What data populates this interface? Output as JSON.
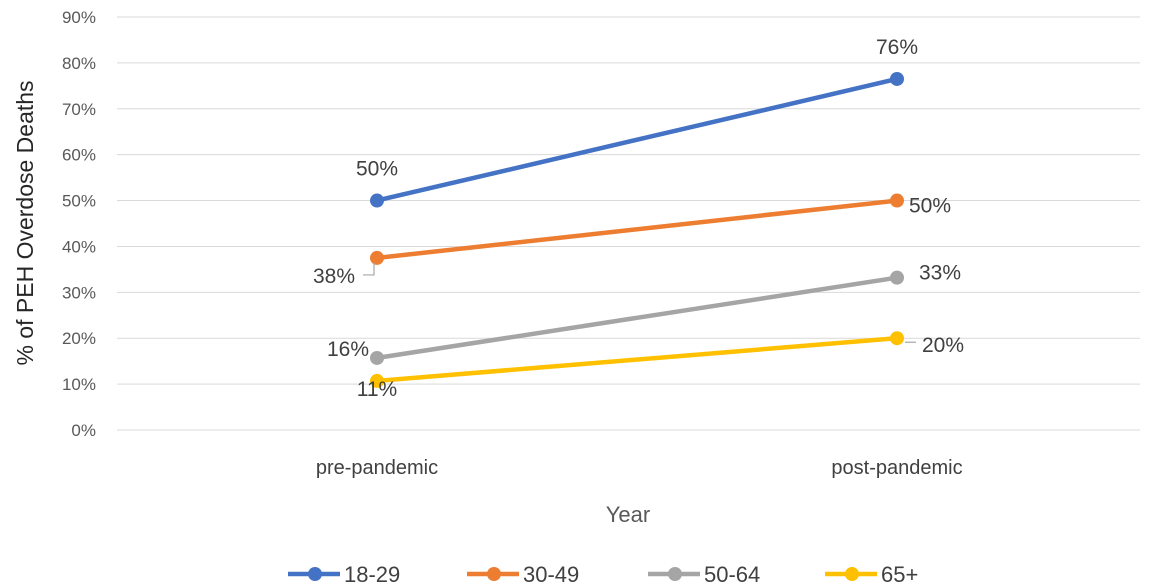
{
  "chart_data": {
    "type": "line",
    "title": "",
    "xlabel": "Year",
    "ylabel": "% of PEH Overdose Deaths",
    "categories": [
      "pre-pandemic",
      "post-pandemic"
    ],
    "ylim": [
      0,
      90
    ],
    "yticks": [
      "0%",
      "10%",
      "20%",
      "30%",
      "40%",
      "50%",
      "60%",
      "70%",
      "80%",
      "90%"
    ],
    "grid": true,
    "legend_position": "bottom",
    "series": [
      {
        "name": "18-29",
        "color": "#4472C4",
        "values": [
          50,
          76.5
        ],
        "labels": [
          "50%",
          "76%"
        ]
      },
      {
        "name": "30-49",
        "color": "#ED7D31",
        "values": [
          37.5,
          50
        ],
        "labels": [
          "38%",
          "50%"
        ]
      },
      {
        "name": "50-64",
        "color": "#A5A5A5",
        "values": [
          15.7,
          33.2
        ],
        "labels": [
          "16%",
          "33%"
        ]
      },
      {
        "name": "65+",
        "color": "#FFC000",
        "values": [
          10.7,
          20
        ],
        "labels": [
          "11%",
          "20%"
        ]
      }
    ]
  }
}
